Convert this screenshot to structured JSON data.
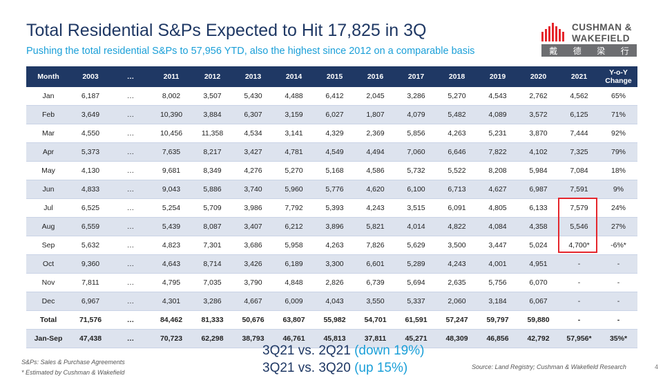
{
  "title": "Total Residential S&Ps Expected to Hit 17,825 in 3Q",
  "subtitle": "Pushing the total residential S&Ps to 57,956 YTD, also the highest since 2012 on a comparable basis",
  "logo": {
    "line1": "CUSHMAN &",
    "line2": "WAKEFIELD",
    "chinese": [
      "戴",
      "德",
      "梁",
      "行"
    ]
  },
  "table": {
    "headers": [
      "Month",
      "2003",
      "…",
      "2011",
      "2012",
      "2013",
      "2014",
      "2015",
      "2016",
      "2017",
      "2018",
      "2019",
      "2020",
      "2021",
      "Y-o-Y Change"
    ],
    "rows": [
      [
        "Jan",
        "6,187",
        "…",
        "8,002",
        "3,507",
        "5,430",
        "4,488",
        "6,412",
        "2,045",
        "3,286",
        "5,270",
        "4,543",
        "2,762",
        "4,562",
        "65%"
      ],
      [
        "Feb",
        "3,649",
        "…",
        "10,390",
        "3,884",
        "6,307",
        "3,159",
        "6,027",
        "1,807",
        "4,079",
        "5,482",
        "4,089",
        "3,572",
        "6,125",
        "71%"
      ],
      [
        "Mar",
        "4,550",
        "…",
        "10,456",
        "11,358",
        "4,534",
        "3,141",
        "4,329",
        "2,369",
        "5,856",
        "4,263",
        "5,231",
        "3,870",
        "7,444",
        "92%"
      ],
      [
        "Apr",
        "5,373",
        "…",
        "7,635",
        "8,217",
        "3,427",
        "4,781",
        "4,549",
        "4,494",
        "7,060",
        "6,646",
        "7,822",
        "4,102",
        "7,325",
        "79%"
      ],
      [
        "May",
        "4,130",
        "…",
        "9,681",
        "8,349",
        "4,276",
        "5,270",
        "5,168",
        "4,586",
        "5,732",
        "5,522",
        "8,208",
        "5,984",
        "7,084",
        "18%"
      ],
      [
        "Jun",
        "4,833",
        "…",
        "9,043",
        "5,886",
        "3,740",
        "5,960",
        "5,776",
        "4,620",
        "6,100",
        "6,713",
        "4,627",
        "6,987",
        "7,591",
        "9%"
      ],
      [
        "Jul",
        "6,525",
        "…",
        "5,254",
        "5,709",
        "3,986",
        "7,792",
        "5,393",
        "4,243",
        "3,515",
        "6,091",
        "4,805",
        "6,133",
        "7,579",
        "24%"
      ],
      [
        "Aug",
        "6,559",
        "…",
        "5,439",
        "8,087",
        "3,407",
        "6,212",
        "3,896",
        "5,821",
        "4,014",
        "4,822",
        "4,084",
        "4,358",
        "5,546",
        "27%"
      ],
      [
        "Sep",
        "5,632",
        "…",
        "4,823",
        "7,301",
        "3,686",
        "5,958",
        "4,263",
        "7,826",
        "5,629",
        "3,500",
        "3,447",
        "5,024",
        "4,700*",
        "-6%*"
      ],
      [
        "Oct",
        "9,360",
        "…",
        "4,643",
        "8,714",
        "3,426",
        "6,189",
        "3,300",
        "6,601",
        "5,289",
        "4,243",
        "4,001",
        "4,951",
        "-",
        "-"
      ],
      [
        "Nov",
        "7,811",
        "…",
        "4,795",
        "7,035",
        "3,790",
        "4,848",
        "2,826",
        "6,739",
        "5,694",
        "2,635",
        "5,756",
        "6,070",
        "-",
        "-"
      ],
      [
        "Dec",
        "6,967",
        "…",
        "4,301",
        "3,286",
        "4,667",
        "6,009",
        "4,043",
        "3,550",
        "5,337",
        "2,060",
        "3,184",
        "6,067",
        "-",
        "-"
      ]
    ],
    "total": [
      "Total",
      "71,576",
      "…",
      "84,462",
      "81,333",
      "50,676",
      "63,807",
      "55,982",
      "54,701",
      "61,591",
      "57,247",
      "59,797",
      "59,880",
      "-",
      "-"
    ],
    "jansep": [
      "Jan-Sep",
      "47,438",
      "…",
      "70,723",
      "62,298",
      "38,793",
      "46,761",
      "45,813",
      "37,811",
      "45,271",
      "48,309",
      "46,856",
      "42,792",
      "57,956*",
      "35%*"
    ]
  },
  "comparisons": [
    {
      "main": "3Q21 vs. 2Q21",
      "paren": "(down 19%)"
    },
    {
      "main": "3Q21 vs. 3Q20",
      "paren": "(up 15%)"
    }
  ],
  "footnotes": [
    "S&Ps: Sales & Purchase Agreements",
    "* Estimated by Cushman & Wakefield"
  ],
  "source": "Source: Land Registry; Cushman & Wakefield Research",
  "page_number": "4",
  "colors": {
    "navy": "#1f3864",
    "accent_blue": "#1a9fd8",
    "highlight_red": "#e5262c",
    "row_alt": "#dde3ee"
  }
}
